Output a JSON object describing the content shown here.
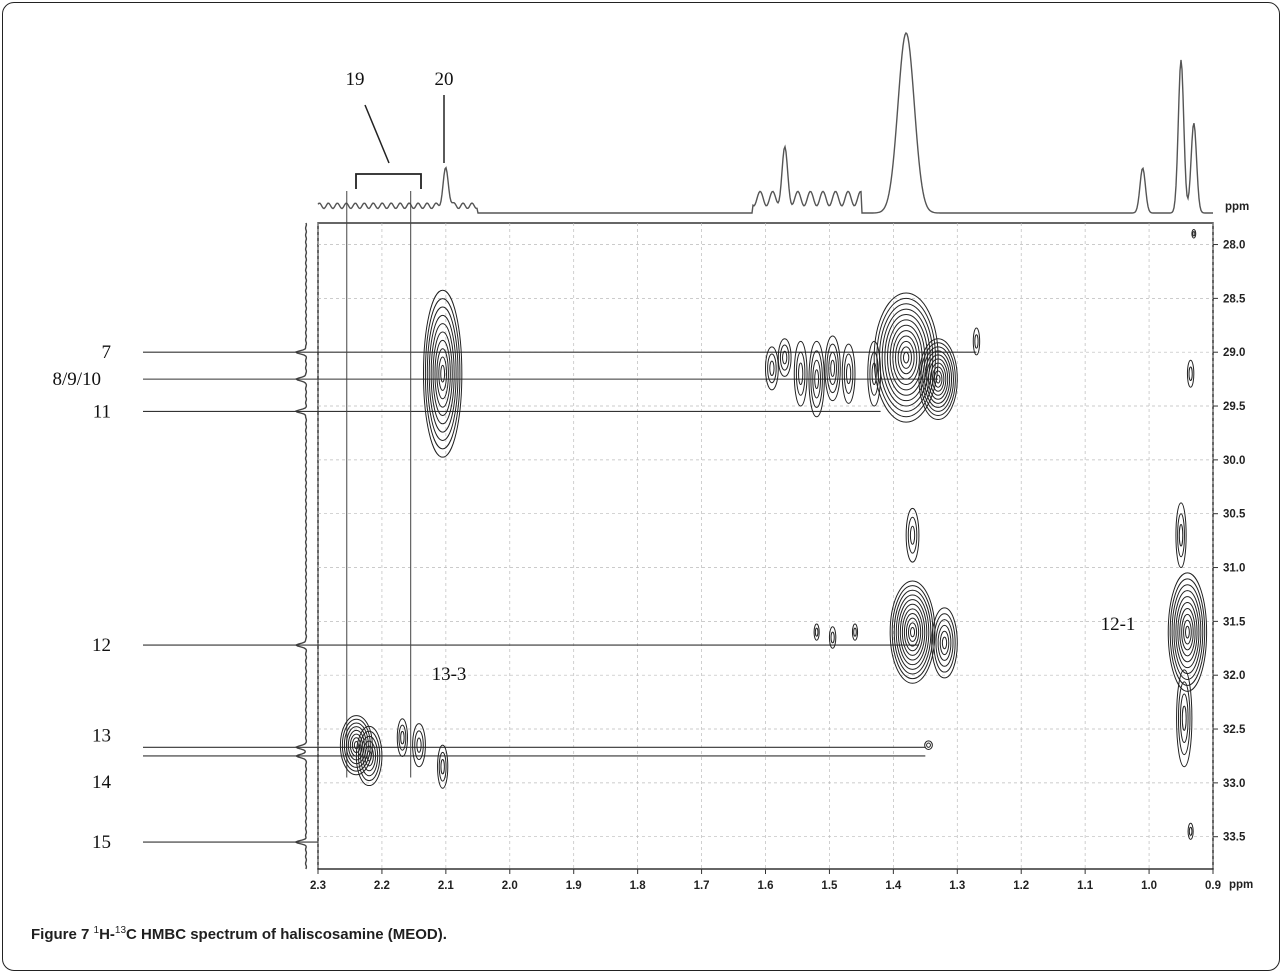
{
  "figure": {
    "caption_label": "Figure 7",
    "caption_sup_h": "1",
    "caption_h": "H-",
    "caption_sup_c": "13",
    "caption_text": "C HMBC spectrum of haliscosamine (MEOD)."
  },
  "chart_data": {
    "type": "heatmap",
    "x_unit": "ppm",
    "y_unit": "ppm",
    "xlim": [
      2.3,
      0.9
    ],
    "ylim": [
      27.8,
      33.8
    ],
    "x_ticks": [
      "2.3",
      "2.2",
      "2.1",
      "2.0",
      "1.9",
      "1.8",
      "1.7",
      "1.6",
      "1.5",
      "1.4",
      "1.3",
      "1.2",
      "1.1",
      "1.0",
      "0.9"
    ],
    "y_ticks": [
      "28.0",
      "28.5",
      "29.0",
      "29.5",
      "30.0",
      "30.5",
      "31.0",
      "31.5",
      "32.0",
      "32.5",
      "33.0",
      "33.5"
    ],
    "top_projection_peaks": [
      {
        "x": 2.1,
        "h": 0.2
      },
      {
        "x": 1.57,
        "h": 0.25
      },
      {
        "x": 1.38,
        "h": 1.0
      },
      {
        "x": 1.01,
        "h": 0.25
      },
      {
        "x": 0.95,
        "h": 0.85
      },
      {
        "x": 0.93,
        "h": 0.5
      }
    ],
    "side_labels": [
      {
        "text": "7",
        "y": 29.0
      },
      {
        "text": "8/9/10",
        "y": 29.25
      },
      {
        "text": "11",
        "y": 29.55
      },
      {
        "text": "12",
        "y": 31.72
      },
      {
        "text": "13",
        "y": 32.67
      },
      {
        "text": "14",
        "y": 32.75
      },
      {
        "text": "15",
        "y": 33.55
      }
    ],
    "top_labels": [
      {
        "text": "19",
        "x": 2.2
      },
      {
        "text": "20",
        "x": 2.11
      }
    ],
    "plot_labels": [
      {
        "text": "13-3",
        "x": 2.11,
        "y": 31.95
      },
      {
        "text": "12-1",
        "x": 1.01,
        "y": 31.55
      }
    ],
    "cross_peaks": [
      {
        "x": 2.105,
        "y": 29.2,
        "w": 0.03,
        "h": 1.55
      },
      {
        "x": 1.38,
        "y": 29.05,
        "w": 0.05,
        "h": 1.2
      },
      {
        "x": 1.33,
        "y": 29.25,
        "w": 0.03,
        "h": 0.75
      },
      {
        "x": 1.59,
        "y": 29.15,
        "w": 0.01,
        "h": 0.4
      },
      {
        "x": 1.57,
        "y": 29.05,
        "w": 0.01,
        "h": 0.35
      },
      {
        "x": 1.545,
        "y": 29.2,
        "w": 0.01,
        "h": 0.6
      },
      {
        "x": 1.52,
        "y": 29.25,
        "w": 0.012,
        "h": 0.7
      },
      {
        "x": 1.495,
        "y": 29.15,
        "w": 0.012,
        "h": 0.6
      },
      {
        "x": 1.47,
        "y": 29.2,
        "w": 0.01,
        "h": 0.55
      },
      {
        "x": 1.43,
        "y": 29.2,
        "w": 0.01,
        "h": 0.6
      },
      {
        "x": 1.27,
        "y": 28.9,
        "w": 0.005,
        "h": 0.25
      },
      {
        "x": 0.935,
        "y": 29.2,
        "w": 0.005,
        "h": 0.25
      },
      {
        "x": 1.37,
        "y": 31.6,
        "w": 0.035,
        "h": 0.95
      },
      {
        "x": 1.32,
        "y": 31.7,
        "w": 0.02,
        "h": 0.65
      },
      {
        "x": 1.37,
        "y": 30.7,
        "w": 0.01,
        "h": 0.5
      },
      {
        "x": 1.52,
        "y": 31.6,
        "w": 0.004,
        "h": 0.15
      },
      {
        "x": 1.495,
        "y": 31.65,
        "w": 0.005,
        "h": 0.2
      },
      {
        "x": 1.46,
        "y": 31.6,
        "w": 0.004,
        "h": 0.15
      },
      {
        "x": 0.94,
        "y": 31.6,
        "w": 0.03,
        "h": 1.1
      },
      {
        "x": 0.945,
        "y": 32.4,
        "w": 0.012,
        "h": 0.9
      },
      {
        "x": 0.95,
        "y": 30.7,
        "w": 0.008,
        "h": 0.6
      },
      {
        "x": 2.24,
        "y": 32.65,
        "w": 0.025,
        "h": 0.55
      },
      {
        "x": 2.22,
        "y": 32.75,
        "w": 0.02,
        "h": 0.55
      },
      {
        "x": 2.168,
        "y": 32.58,
        "w": 0.008,
        "h": 0.35
      },
      {
        "x": 2.142,
        "y": 32.65,
        "w": 0.01,
        "h": 0.4
      },
      {
        "x": 2.105,
        "y": 32.85,
        "w": 0.008,
        "h": 0.4
      },
      {
        "x": 1.345,
        "y": 32.65,
        "w": 0.006,
        "h": 0.08
      },
      {
        "x": 0.935,
        "y": 33.45,
        "w": 0.004,
        "h": 0.15
      },
      {
        "x": 0.93,
        "y": 27.9,
        "w": 0.003,
        "h": 0.08
      }
    ]
  }
}
